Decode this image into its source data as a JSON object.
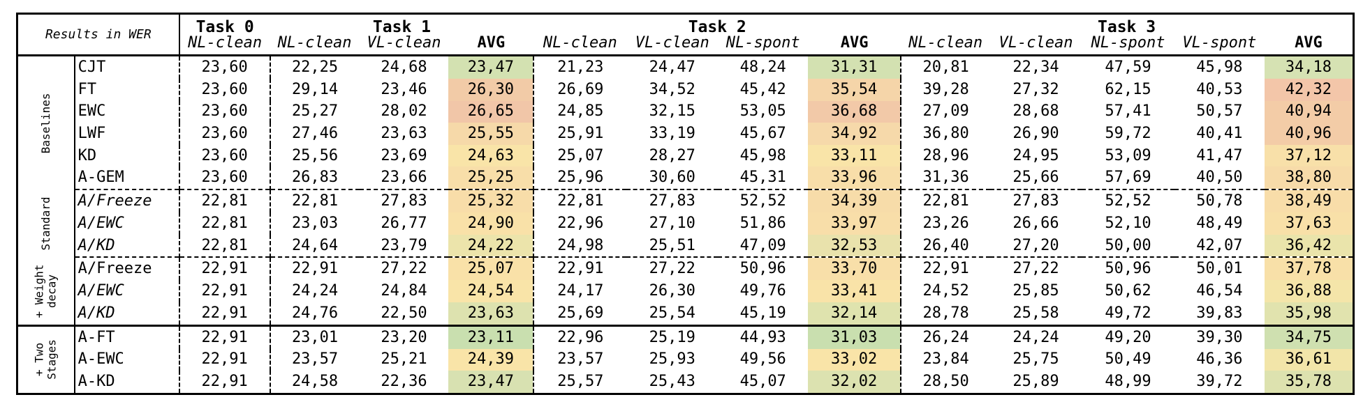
{
  "header": {
    "corner": "Results in WER",
    "tasks": [
      "Task 0",
      "Task 1",
      "Task 2",
      "Task 3"
    ],
    "columns": [
      "NL-clean",
      "NL-clean",
      "VL-clean",
      "AVG",
      "NL-clean",
      "VL-clean",
      "NL-spont",
      "AVG",
      "NL-clean",
      "VL-clean",
      "NL-spont",
      "VL-spont",
      "AVG"
    ]
  },
  "groups": [
    {
      "label": "Baselines",
      "rows": [
        {
          "name": "CJT",
          "values": [
            "23,60",
            "22,25",
            "24,68",
            "23,47",
            "21,23",
            "24,47",
            "48,24",
            "31,31",
            "20,81",
            "22,34",
            "47,59",
            "45,98",
            "34,18"
          ],
          "avg_colors": [
            "#d3e1b1",
            "#d3e1b1",
            "#d6e2b3"
          ]
        },
        {
          "name": "FT",
          "values": [
            "23,60",
            "29,14",
            "23,46",
            "26,30",
            "26,69",
            "34,52",
            "45,42",
            "35,54",
            "39,28",
            "27,32",
            "62,15",
            "40,53",
            "42,32"
          ],
          "avg_colors": [
            "#f2cba7",
            "#f5d5a9",
            "#f3c6a9"
          ]
        },
        {
          "name": "EWC",
          "values": [
            "23,60",
            "25,27",
            "28,02",
            "26,65",
            "24,85",
            "32,15",
            "53,05",
            "36,68",
            "27,09",
            "28,68",
            "57,41",
            "50,57",
            "40,94"
          ],
          "avg_colors": [
            "#f1c6a8",
            "#f2c9a8",
            "#f3cca7"
          ]
        },
        {
          "name": "LWF",
          "values": [
            "23,60",
            "27,46",
            "23,63",
            "25,55",
            "25,91",
            "33,19",
            "45,67",
            "34,92",
            "36,80",
            "26,90",
            "59,72",
            "40,41",
            "40,96"
          ],
          "avg_colors": [
            "#f6d9a9",
            "#f6d9aa",
            "#f3cca7"
          ]
        },
        {
          "name": "KD",
          "values": [
            "23,60",
            "25,56",
            "23,69",
            "24,63",
            "25,07",
            "28,27",
            "45,98",
            "33,11",
            "28,96",
            "24,95",
            "53,09",
            "41,47",
            "37,12"
          ],
          "avg_colors": [
            "#f9e4a8",
            "#f9e4a8",
            "#f8e0a9"
          ]
        },
        {
          "name": "A-GEM",
          "values": [
            "23,60",
            "26,83",
            "23,66",
            "25,25",
            "25,96",
            "30,60",
            "45,31",
            "33,96",
            "31,36",
            "25,66",
            "57,69",
            "40,50",
            "38,80"
          ],
          "avg_colors": [
            "#f8dea9",
            "#f8dea9",
            "#f7dba9"
          ]
        }
      ]
    },
    {
      "label": "Standard",
      "rows": [
        {
          "name": "A/Freeze",
          "italic": true,
          "values": [
            "22,81",
            "22,81",
            "27,83",
            "25,32",
            "22,81",
            "27,83",
            "52,52",
            "34,39",
            "22,81",
            "27,83",
            "52,52",
            "50,78",
            "38,49"
          ],
          "avg_colors": [
            "#f8dda9",
            "#f7dca9",
            "#f8dda9"
          ]
        },
        {
          "name": "A/EWC",
          "italic": true,
          "values": [
            "22,81",
            "23,03",
            "26,77",
            "24,90",
            "22,96",
            "27,10",
            "51,86",
            "33,97",
            "23,26",
            "26,66",
            "52,10",
            "48,49",
            "37,63"
          ],
          "avg_colors": [
            "#f9e1a8",
            "#f8dea9",
            "#f8e0a8"
          ]
        },
        {
          "name": "A/KD",
          "italic": true,
          "values": [
            "22,81",
            "24,64",
            "23,79",
            "24,22",
            "24,98",
            "25,51",
            "47,09",
            "32,53",
            "26,40",
            "27,20",
            "50,00",
            "42,07",
            "36,42"
          ],
          "avg_colors": [
            "#ece4ab",
            "#e9e2ac",
            "#eae4ab"
          ]
        }
      ]
    },
    {
      "label": "+ Weight\ndecay",
      "rows": [
        {
          "name": "A/Freeze",
          "values": [
            "22,91",
            "22,91",
            "27,22",
            "25,07",
            "22,91",
            "27,22",
            "50,96",
            "33,70",
            "22,91",
            "27,22",
            "50,96",
            "50,01",
            "37,78"
          ],
          "avg_colors": [
            "#f9e1a8",
            "#f8dfa9",
            "#f8e0a8"
          ]
        },
        {
          "name": "A/EWC",
          "italic": true,
          "values": [
            "22,91",
            "24,24",
            "24,84",
            "24,54",
            "24,17",
            "26,30",
            "49,76",
            "33,41",
            "24,52",
            "25,85",
            "50,62",
            "46,54",
            "36,88"
          ],
          "avg_colors": [
            "#f9e4a8",
            "#f9e3a8",
            "#f4e5a9"
          ]
        },
        {
          "name": "A/KD",
          "italic": true,
          "values": [
            "22,91",
            "24,76",
            "22,50",
            "23,63",
            "25,69",
            "25,54",
            "45,19",
            "32,14",
            "28,78",
            "25,58",
            "49,72",
            "39,83",
            "35,98"
          ],
          "avg_colors": [
            "#dde2af",
            "#dfe3ae",
            "#e1e3ae"
          ]
        }
      ]
    },
    {
      "label": "+ Two\nStages",
      "rows": [
        {
          "name": "A-FT",
          "values": [
            "22,91",
            "23,01",
            "23,20",
            "23,11",
            "22,96",
            "25,19",
            "44,93",
            "31,03",
            "26,24",
            "24,24",
            "49,20",
            "39,30",
            "34,75"
          ],
          "bold_avg": true,
          "avg_colors": [
            "#c9dfaf",
            "#c9dfaf",
            "#cfe0b0"
          ]
        },
        {
          "name": "A-EWC",
          "values": [
            "22,91",
            "23,57",
            "25,21",
            "24,39",
            "23,57",
            "25,93",
            "49,56",
            "33,02",
            "23,84",
            "25,75",
            "50,49",
            "46,36",
            "36,61"
          ],
          "avg_colors": [
            "#f9e4a8",
            "#f9e4a8",
            "#f2e5a9"
          ]
        },
        {
          "name": "A-KD",
          "values": [
            "22,91",
            "24,58",
            "22,36",
            "23,47",
            "25,57",
            "25,43",
            "45,07",
            "32,02",
            "28,50",
            "25,89",
            "48,99",
            "39,72",
            "35,78"
          ],
          "avg_colors": [
            "#d8e1b1",
            "#dce2b0",
            "#dde2af"
          ]
        }
      ]
    }
  ]
}
